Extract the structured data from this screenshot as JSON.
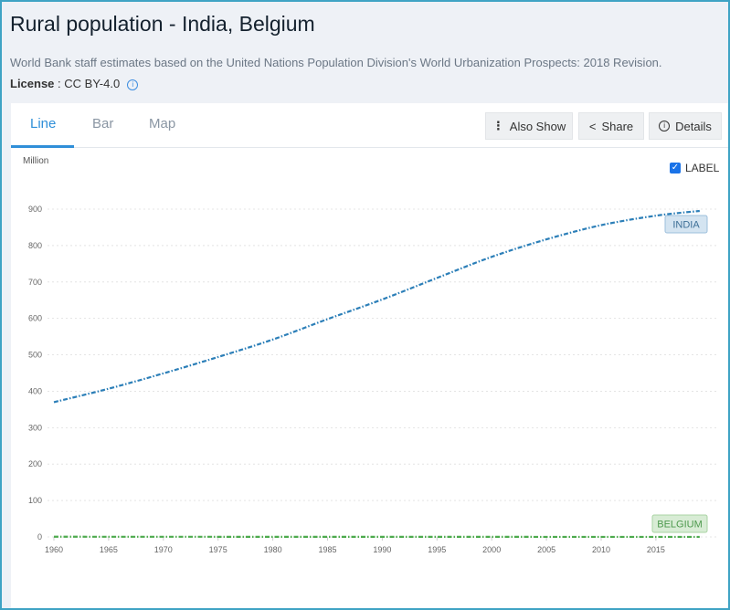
{
  "header": {
    "title": "Rural population - India, Belgium",
    "source": "World Bank staff estimates based on the United Nations Population Division's World Urbanization Prospects: 2018 Revision.",
    "license_label": "License",
    "license_value": " : CC BY-4.0"
  },
  "tabs": [
    {
      "label": "Line"
    },
    {
      "label": "Bar"
    },
    {
      "label": "Map"
    }
  ],
  "toolbar": {
    "also_show": "Also Show",
    "share": "Share",
    "details": "Details"
  },
  "label_toggle": {
    "label": "LABEL",
    "checked": true
  },
  "colors": {
    "india": "#2c7fb8",
    "belgium": "#4daa4d",
    "accent": "#2f8fd8"
  },
  "chart_data": {
    "type": "line",
    "ylabel": "Million",
    "ylim": [
      0,
      900
    ],
    "yticks": [
      "0",
      "100",
      "200",
      "300",
      "400",
      "500",
      "600",
      "700",
      "800",
      "900"
    ],
    "xticks": [
      "1960",
      "1965",
      "1970",
      "1975",
      "1980",
      "1985",
      "1990",
      "1995",
      "2000",
      "2005",
      "2010",
      "2015"
    ],
    "x": [
      1960,
      1965,
      1970,
      1975,
      1980,
      1985,
      1990,
      1995,
      2000,
      2005,
      2010,
      2015,
      2019
    ],
    "series": [
      {
        "name": "India",
        "label": "INDIA",
        "values": [
          370,
          407,
          449,
          494,
          542,
          598,
          652,
          711,
          769,
          817,
          856,
          882,
          895
        ]
      },
      {
        "name": "Belgium",
        "label": "BELGIUM",
        "values": [
          0.6,
          0.5,
          0.5,
          0.4,
          0.3,
          0.3,
          0.3,
          0.3,
          0.3,
          0.2,
          0.2,
          0.2,
          0.2
        ]
      }
    ]
  }
}
